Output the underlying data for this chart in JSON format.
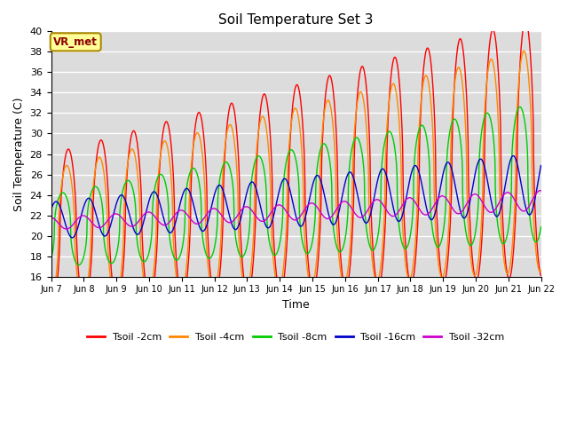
{
  "title": "Soil Temperature Set 3",
  "xlabel": "Time",
  "ylabel": "Soil Temperature (C)",
  "ylim": [
    16,
    40
  ],
  "yticks": [
    16,
    18,
    20,
    22,
    24,
    26,
    28,
    30,
    32,
    34,
    36,
    38,
    40
  ],
  "bg_color": "#dcdcdc",
  "annotation_text": "VR_met",
  "annotation_color": "#8b0000",
  "annotation_bg": "#ffff99",
  "annotation_border": "#aa8800",
  "series_colors": [
    "#ff0000",
    "#ff8800",
    "#00cc00",
    "#0000cc",
    "#cc00cc"
  ],
  "series_labels": [
    "Tsoil -2cm",
    "Tsoil -4cm",
    "Tsoil -8cm",
    "Tsoil -16cm",
    "Tsoil -32cm"
  ],
  "n_days": 15,
  "start_day": 7,
  "points_per_day": 144,
  "figsize": [
    6.4,
    4.8
  ],
  "dpi": 100
}
